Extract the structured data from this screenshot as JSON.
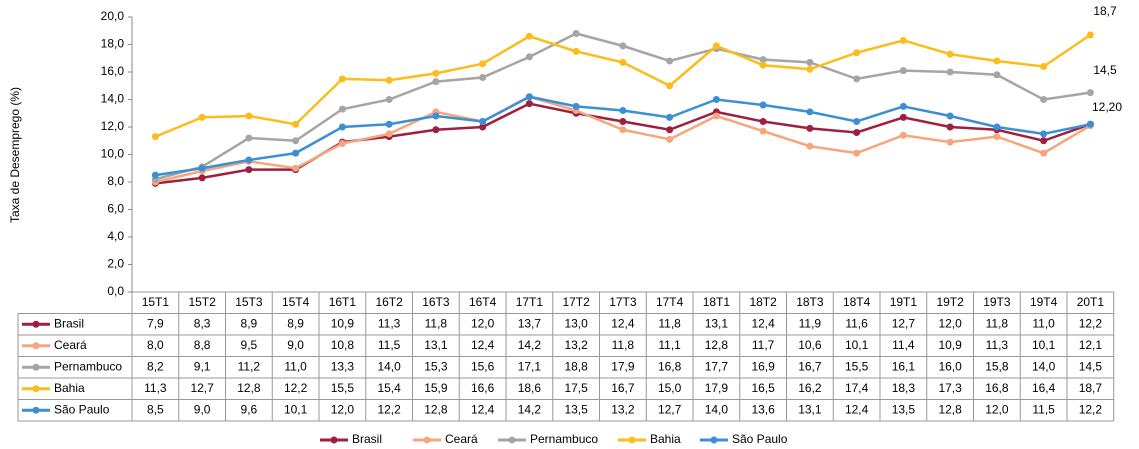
{
  "chart_data": {
    "type": "line",
    "y_label": "Taxa de Desemprego (%)",
    "categories": [
      "15T1",
      "15T2",
      "15T3",
      "15T4",
      "16T1",
      "16T2",
      "16T3",
      "16T4",
      "17T1",
      "17T2",
      "17T3",
      "17T4",
      "18T1",
      "18T2",
      "18T3",
      "18T4",
      "19T1",
      "19T2",
      "19T3",
      "19T4",
      "20T1"
    ],
    "ylim": [
      0,
      20
    ],
    "yticks": [
      {
        "value": 0,
        "label": "0,0"
      },
      {
        "value": 2,
        "label": "2,0"
      },
      {
        "value": 4,
        "label": "4,0"
      },
      {
        "value": 6,
        "label": "6,0"
      },
      {
        "value": 8,
        "label": "8,0"
      },
      {
        "value": 10,
        "label": "10,0"
      },
      {
        "value": 12,
        "label": "12,0"
      },
      {
        "value": 14,
        "label": "14,0"
      },
      {
        "value": 16,
        "label": "16,0"
      },
      {
        "value": 18,
        "label": "18,0"
      },
      {
        "value": 20,
        "label": "20,0"
      }
    ],
    "series": [
      {
        "name": "Brasil",
        "color": "#9e1f3f",
        "values": [
          7.9,
          8.3,
          8.9,
          8.9,
          10.9,
          11.3,
          11.8,
          12.0,
          13.7,
          13.0,
          12.4,
          11.8,
          13.1,
          12.4,
          11.9,
          11.6,
          12.7,
          12.0,
          11.8,
          11.0,
          12.2
        ],
        "value_labels": [
          "7,9",
          "8,3",
          "8,9",
          "8,9",
          "10,9",
          "11,3",
          "11,8",
          "12,0",
          "13,7",
          "13,0",
          "12,4",
          "11,8",
          "13,1",
          "12,4",
          "11,9",
          "11,6",
          "12,7",
          "12,0",
          "11,8",
          "11,0",
          "12,2"
        ]
      },
      {
        "name": "Ceará",
        "color": "#f4a77e",
        "values": [
          8.0,
          8.8,
          9.5,
          9.0,
          10.8,
          11.5,
          13.1,
          12.4,
          14.2,
          13.2,
          11.8,
          11.1,
          12.8,
          11.7,
          10.6,
          10.1,
          11.4,
          10.9,
          11.3,
          10.1,
          12.1
        ],
        "value_labels": [
          "8,0",
          "8,8",
          "9,5",
          "9,0",
          "10,8",
          "11,5",
          "13,1",
          "12,4",
          "14,2",
          "13,2",
          "11,8",
          "11,1",
          "12,8",
          "11,7",
          "10,6",
          "10,1",
          "11,4",
          "10,9",
          "11,3",
          "10,1",
          "12,1"
        ]
      },
      {
        "name": "Pernambuco",
        "color": "#a5a5a5",
        "values": [
          8.2,
          9.1,
          11.2,
          11.0,
          13.3,
          14.0,
          15.3,
          15.6,
          17.1,
          18.8,
          17.9,
          16.8,
          17.7,
          16.9,
          16.7,
          15.5,
          16.1,
          16.0,
          15.8,
          14.0,
          14.5
        ],
        "value_labels": [
          "8,2",
          "9,1",
          "11,2",
          "11,0",
          "13,3",
          "14,0",
          "15,3",
          "15,6",
          "17,1",
          "18,8",
          "17,9",
          "16,8",
          "17,7",
          "16,9",
          "16,7",
          "15,5",
          "16,1",
          "16,0",
          "15,8",
          "14,0",
          "14,5"
        ]
      },
      {
        "name": "Bahia",
        "color": "#fbbd19",
        "values": [
          11.3,
          12.7,
          12.8,
          12.2,
          15.5,
          15.4,
          15.9,
          16.6,
          18.6,
          17.5,
          16.7,
          15.0,
          17.9,
          16.5,
          16.2,
          17.4,
          18.3,
          17.3,
          16.8,
          16.4,
          18.7
        ],
        "value_labels": [
          "11,3",
          "12,7",
          "12,8",
          "12,2",
          "15,5",
          "15,4",
          "15,9",
          "16,6",
          "18,6",
          "17,5",
          "16,7",
          "15,0",
          "17,9",
          "16,5",
          "16,2",
          "17,4",
          "18,3",
          "17,3",
          "16,8",
          "16,4",
          "18,7"
        ]
      },
      {
        "name": "São Paulo",
        "color": "#3c8fd4",
        "values": [
          8.5,
          9.0,
          9.6,
          10.1,
          12.0,
          12.2,
          12.8,
          12.4,
          14.2,
          13.5,
          13.2,
          12.7,
          14.0,
          13.6,
          13.1,
          12.4,
          13.5,
          12.8,
          12.0,
          11.5,
          12.2
        ],
        "value_labels": [
          "8,5",
          "9,0",
          "9,6",
          "10,1",
          "12,0",
          "12,2",
          "12,8",
          "12,4",
          "14,2",
          "13,5",
          "13,2",
          "12,7",
          "14,0",
          "13,6",
          "13,1",
          "12,4",
          "13,5",
          "12,8",
          "12,0",
          "11,5",
          "12,2"
        ]
      }
    ],
    "annotations": [
      {
        "text": "18,7"
      },
      {
        "text": "14,5"
      },
      {
        "text": "12,20"
      }
    ]
  }
}
